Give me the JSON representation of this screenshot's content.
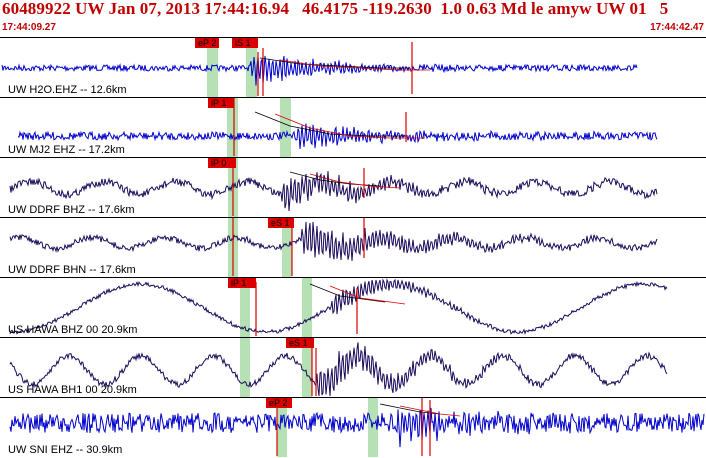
{
  "header": {
    "title": "60489922 UW Jan 07, 2013 17:44:16.94   46.4175 -119.2630  1.0 0.63 Md le amyw UW 01   5",
    "start_time": "17:44:09.27",
    "end_time": "17:44:42.47"
  },
  "colors": {
    "header_text": "#c00000",
    "trace_blue": "#0000cc",
    "trace_navy": "#1a0a5a",
    "pick_red": "#dd0000",
    "pick_band_green": "#a8dca8"
  },
  "traces": [
    {
      "label": "UW H2O.EHZ -- 12.6km",
      "picks": [
        "eP 2",
        "iS 1"
      ]
    },
    {
      "label": "UW MJ2 EHZ -- 17.2km",
      "picks": [
        "iP 1"
      ]
    },
    {
      "label": "UW DDRF BHZ -- 17.6km",
      "picks": [
        "iP 0"
      ]
    },
    {
      "label": "UW DDRF BHN -- 17.6km",
      "picks": [
        "eS 1"
      ]
    },
    {
      "label": "US HAWA BHZ 00 20.9km",
      "picks": [
        "iP 1"
      ]
    },
    {
      "label": "US HAWA BH1 00 20.9km",
      "picks": [
        "eS 1"
      ]
    },
    {
      "label": "UW SNI EHZ -- 30.9km",
      "picks": [
        "eP 2"
      ]
    }
  ]
}
